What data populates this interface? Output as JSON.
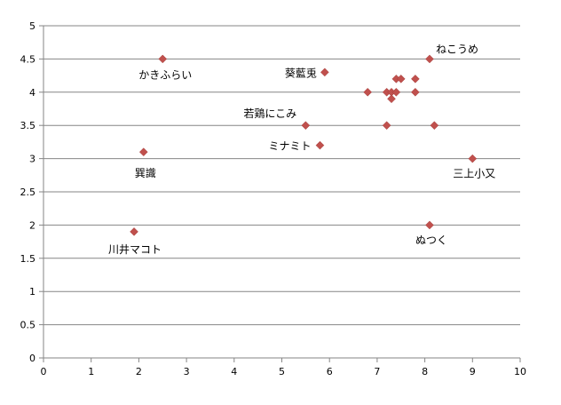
{
  "chart_data": {
    "type": "scatter",
    "title": "",
    "xlabel": "",
    "ylabel": "",
    "xlim": [
      0,
      10
    ],
    "ylim": [
      0,
      5
    ],
    "x_ticks": [
      "0",
      "1",
      "2",
      "3",
      "4",
      "5",
      "6",
      "7",
      "8",
      "9",
      "10"
    ],
    "y_ticks": [
      "0",
      "0.5",
      "1",
      "1.5",
      "2",
      "2.5",
      "3",
      "3.5",
      "4",
      "4.5",
      "5"
    ],
    "grid": "horizontal",
    "marker_color": "#C0504D",
    "points": [
      {
        "x": 2.5,
        "y": 4.5,
        "label": "かきふらい"
      },
      {
        "x": 2.1,
        "y": 3.1,
        "label": "巽識"
      },
      {
        "x": 1.9,
        "y": 1.9,
        "label": "川井マコト"
      },
      {
        "x": 5.9,
        "y": 4.3,
        "label": "葵藍兎"
      },
      {
        "x": 5.5,
        "y": 3.5,
        "label": "若鶏にこみ"
      },
      {
        "x": 5.8,
        "y": 3.2,
        "label": "ミナミト"
      },
      {
        "x": 8.1,
        "y": 4.5,
        "label": "ねこうめ"
      },
      {
        "x": 9.0,
        "y": 3.0,
        "label": "三上小又"
      },
      {
        "x": 8.1,
        "y": 2.0,
        "label": "ぬつく"
      },
      {
        "x": 6.8,
        "y": 4.0,
        "label": ""
      },
      {
        "x": 7.2,
        "y": 4.0,
        "label": ""
      },
      {
        "x": 7.3,
        "y": 4.0,
        "label": ""
      },
      {
        "x": 7.4,
        "y": 4.0,
        "label": ""
      },
      {
        "x": 7.3,
        "y": 3.9,
        "label": ""
      },
      {
        "x": 7.4,
        "y": 4.2,
        "label": ""
      },
      {
        "x": 7.5,
        "y": 4.2,
        "label": ""
      },
      {
        "x": 7.8,
        "y": 4.2,
        "label": ""
      },
      {
        "x": 7.8,
        "y": 4.0,
        "label": ""
      },
      {
        "x": 7.2,
        "y": 3.5,
        "label": ""
      },
      {
        "x": 8.2,
        "y": 3.5,
        "label": ""
      }
    ]
  }
}
